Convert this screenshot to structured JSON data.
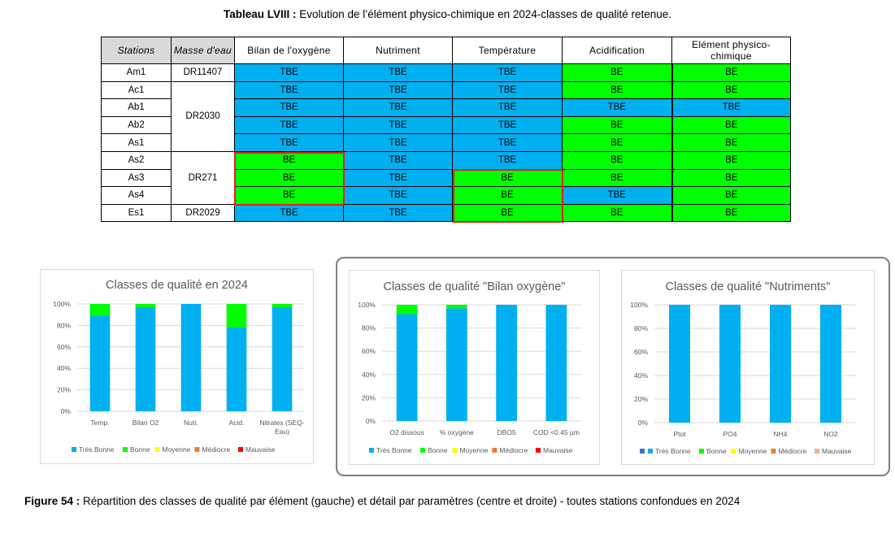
{
  "table_caption": {
    "label": "Tableau LVIII :",
    "text": " Evolution de l’élément physico-chimique en 2024-classes de qualité retenue."
  },
  "table": {
    "headers": [
      "Stations",
      "Masse d'eau",
      "Bilan de l'oxygène",
      "Nutriment",
      "Température",
      "Acidification",
      "Elément physico-chimique"
    ],
    "rows": [
      {
        "station": "Am1",
        "masse": "DR11407",
        "values": [
          "TBE",
          "TBE",
          "TBE",
          "BE",
          "BE"
        ]
      },
      {
        "station": "Ac1",
        "masse": "DR2030",
        "values": [
          "TBE",
          "TBE",
          "TBE",
          "BE",
          "BE"
        ]
      },
      {
        "station": "Ab1",
        "masse": "",
        "values": [
          "TBE",
          "TBE",
          "TBE",
          "TBE",
          "TBE"
        ]
      },
      {
        "station": "Ab2",
        "masse": "",
        "values": [
          "TBE",
          "TBE",
          "TBE",
          "BE",
          "BE"
        ]
      },
      {
        "station": "As1",
        "masse": "",
        "values": [
          "TBE",
          "TBE",
          "TBE",
          "BE",
          "BE"
        ]
      },
      {
        "station": "As2",
        "masse": "DR271",
        "values": [
          "BE",
          "TBE",
          "TBE",
          "BE",
          "BE"
        ]
      },
      {
        "station": "As3",
        "masse": "",
        "values": [
          "BE",
          "TBE",
          "BE",
          "BE",
          "BE"
        ]
      },
      {
        "station": "As4",
        "masse": "",
        "values": [
          "BE",
          "TBE",
          "BE",
          "TBE",
          "BE"
        ]
      },
      {
        "station": "Es1",
        "masse": "DR2029",
        "values": [
          "TBE",
          "TBE",
          "BE",
          "BE",
          "BE"
        ]
      }
    ],
    "class_colors": {
      "TBE": "#00b0f0",
      "BE": "#00ff00"
    },
    "highlight_color": "#e02020"
  },
  "chart_data": [
    {
      "type": "bar",
      "stacked": true,
      "title": "Classes de qualité en 2024",
      "categories": [
        "Temp.",
        "Bilan O2",
        "Nutr.",
        "Acid.",
        "Nitrates (SEQ-Eau)"
      ],
      "series": [
        {
          "name": "Très Bonne",
          "color": "#00b0f0",
          "values": [
            89,
            97,
            100,
            78,
            97
          ]
        },
        {
          "name": "Bonne",
          "color": "#00ff00",
          "values": [
            11,
            3,
            0,
            22,
            3
          ]
        },
        {
          "name": "Moyenne",
          "color": "#ffff00",
          "values": [
            0,
            0,
            0,
            0,
            0
          ]
        },
        {
          "name": "Médiocre",
          "color": "#ed7d31",
          "values": [
            0,
            0,
            0,
            0,
            0
          ]
        },
        {
          "name": "Mauvaise",
          "color": "#ff0000",
          "values": [
            0,
            0,
            0,
            0,
            0
          ]
        }
      ],
      "yticks": [
        "0%",
        "20%",
        "40%",
        "60%",
        "80%",
        "100%"
      ],
      "ylim": [
        0,
        100
      ]
    },
    {
      "type": "bar",
      "stacked": true,
      "title": "Classes de qualité \"Bilan oxygène\"",
      "categories": [
        "O2 dissous",
        "% oxygène",
        "DBO5",
        "COD <0.45 µm"
      ],
      "series": [
        {
          "name": "Très Bonne",
          "color": "#00b0f0",
          "values": [
            92,
            97,
            100,
            100
          ]
        },
        {
          "name": "Bonne",
          "color": "#00ff00",
          "values": [
            8,
            3,
            0,
            0
          ]
        },
        {
          "name": "Moyenne",
          "color": "#ffff00",
          "values": [
            0,
            0,
            0,
            0
          ]
        },
        {
          "name": "Médiocre",
          "color": "#ed7d31",
          "values": [
            0,
            0,
            0,
            0
          ]
        },
        {
          "name": "Mauvaise",
          "color": "#ff0000",
          "values": [
            0,
            0,
            0,
            0
          ]
        }
      ],
      "yticks": [
        "0%",
        "20%",
        "40%",
        "60%",
        "80%",
        "100%"
      ],
      "ylim": [
        0,
        100
      ]
    },
    {
      "type": "bar",
      "stacked": true,
      "title": "Classes de qualité \"Nutriments\"",
      "categories": [
        "Ptot",
        "PO4",
        "NH4",
        "NO2"
      ],
      "series": [
        {
          "name": "",
          "color": "#4472c4",
          "values": [
            0,
            0,
            0,
            0
          ]
        },
        {
          "name": "Très Bonne",
          "color": "#00b0f0",
          "values": [
            100,
            100,
            100,
            100
          ]
        },
        {
          "name": "Bonne",
          "color": "#00ff00",
          "values": [
            0,
            0,
            0,
            0
          ]
        },
        {
          "name": "Moyenne",
          "color": "#ffff00",
          "values": [
            0,
            0,
            0,
            0
          ]
        },
        {
          "name": "Médiocre",
          "color": "#ed7d31",
          "values": [
            0,
            0,
            0,
            0
          ]
        },
        {
          "name": "Mauvaise",
          "color": "#f4b183",
          "values": [
            0,
            0,
            0,
            0
          ]
        }
      ],
      "yticks": [
        "0%",
        "20%",
        "40%",
        "60%",
        "80%",
        "100%"
      ],
      "ylim": [
        0,
        100
      ]
    }
  ],
  "figure_caption": {
    "label": "Figure 54 :",
    "text": "  Répartition des classes de qualité par élément (gauche) et détail par paramètres (centre et droite) - toutes stations confondues en 2024"
  }
}
